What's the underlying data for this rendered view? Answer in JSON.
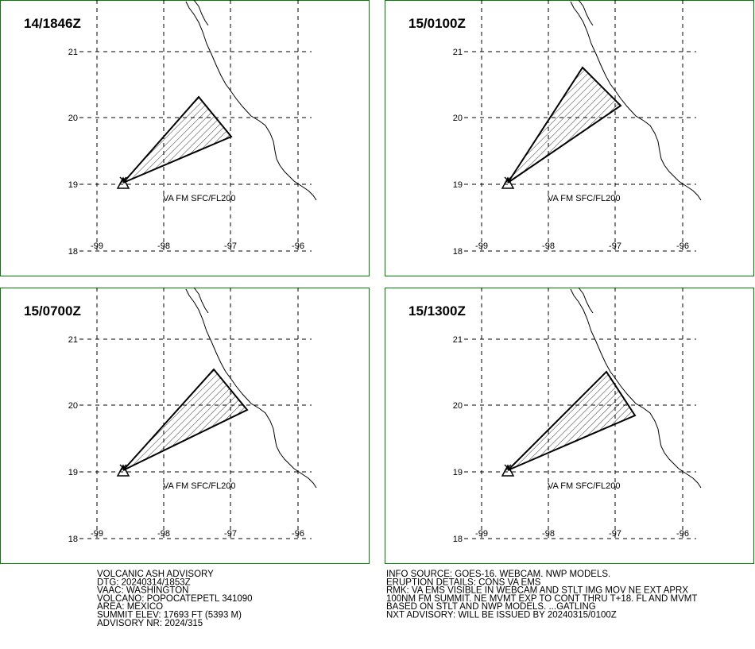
{
  "panels": [
    {
      "time": "14/1846Z",
      "label": "VA FM SFC/FL200"
    },
    {
      "time": "15/0100Z",
      "label": "VA FM SFC/FL200"
    },
    {
      "time": "15/0700Z",
      "label": "VA FM SFC/FL200"
    },
    {
      "time": "15/1300Z",
      "label": "VA FM SFC/FL200"
    }
  ],
  "lat_labels": [
    "21",
    "20",
    "19",
    "18"
  ],
  "lon_labels": [
    "-99",
    "-98",
    "-97",
    "-96"
  ],
  "advisory": {
    "left": [
      "VOLCANIC ASH ADVISORY",
      "DTG: 20240314/1853Z",
      "VAAC: WASHINGTON",
      "VOLCANO: POPOCATEPETL 341090",
      "AREA: MEXICO",
      "SUMMIT ELEV: 17693 FT (5393 M)",
      "ADVISORY NR: 2024/315"
    ],
    "right": [
      "INFO SOURCE: GOES-16. WEBCAM. NWP MODELS.",
      "ERUPTION DETAILS: CONS VA EMS",
      "RMK: VA EMS VISIBLE IN WEBCAM AND STLT IMG MOV NE EXT APRX",
      "100NM FM SUMMIT. NE MVMT EXP TO CONT THRU T+18. FL AND MVMT",
      "BASED ON STLT AND NWP MODELS. ...GATLING",
      "NXT ADVISORY: WILL BE ISSUED BY 20240315/0100Z"
    ]
  }
}
